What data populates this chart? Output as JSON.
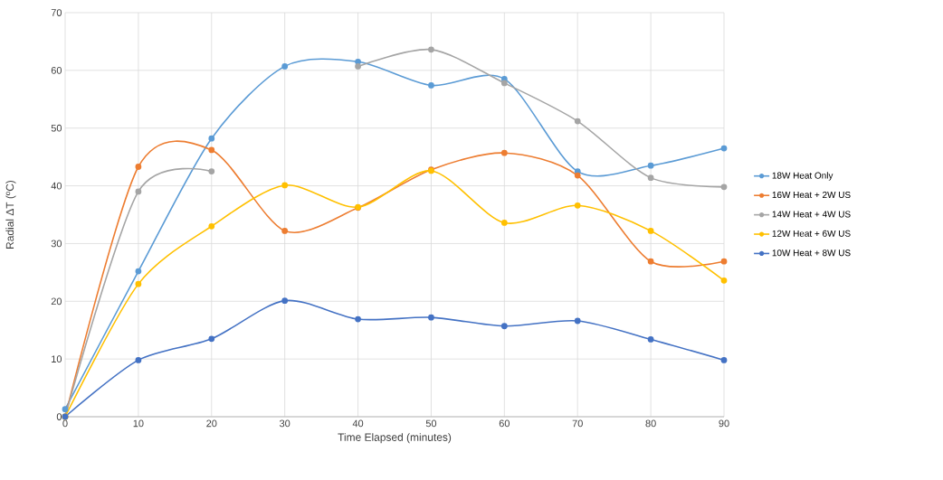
{
  "chart_data": {
    "type": "line",
    "xlabel": "Time Elapsed (minutes)",
    "ylabel": "Radial ΔT (ºC)",
    "x": [
      0,
      10,
      20,
      30,
      40,
      50,
      60,
      70,
      80,
      90
    ],
    "series": [
      {
        "name": "18W Heat Only",
        "color": "#5b9bd5",
        "values": [
          1.3,
          25.2,
          48.2,
          60.7,
          61.5,
          57.4,
          58.5,
          42.5,
          43.5,
          46.5
        ]
      },
      {
        "name": "16W Heat + 2W US",
        "color": "#ed7d31",
        "values": [
          0,
          43.3,
          46.2,
          32.2,
          36.2,
          42.8,
          45.7,
          41.8,
          26.9,
          26.9
        ]
      },
      {
        "name": "14W Heat + 4W US",
        "color": "#a5a5a5",
        "values": [
          0,
          39,
          42.5,
          null,
          60.7,
          63.6,
          57.8,
          51.2,
          41.4,
          39.8
        ]
      },
      {
        "name": "12W Heat + 6W US",
        "color": "#ffc000",
        "values": [
          0,
          23,
          33,
          40.1,
          36.3,
          42.6,
          33.6,
          36.6,
          32.2,
          23.6
        ]
      },
      {
        "name": "10W Heat + 8W US",
        "color": "#4472c4",
        "values": [
          0,
          9.8,
          13.5,
          20.1,
          16.9,
          17.2,
          15.7,
          16.6,
          13.4,
          9.8
        ]
      }
    ],
    "xlim": [
      0,
      90
    ],
    "xticks": [
      0,
      10,
      20,
      30,
      40,
      50,
      60,
      70,
      80,
      90
    ],
    "ylim": [
      0,
      70
    ],
    "yticks": [
      0,
      10,
      20,
      30,
      40,
      50,
      60,
      70
    ],
    "grid": true,
    "legend": "right",
    "marker": "circle",
    "line_style": "solid"
  }
}
